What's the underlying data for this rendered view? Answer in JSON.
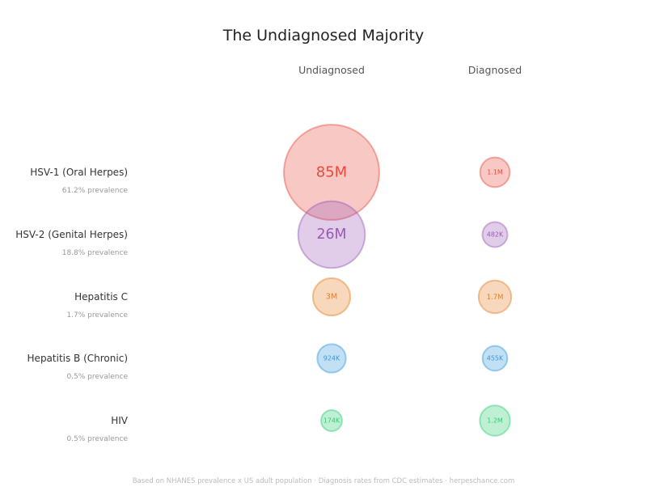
{
  "chart_data": {
    "type": "bubble",
    "title": "The Undiagnosed Majority",
    "columns": [
      "Undiagnosed",
      "Diagnosed"
    ],
    "rows": [
      {
        "name": "HSV-1 (Oral Herpes)",
        "prevalence": "61.2% prevalence",
        "color": "#e74c3c",
        "undiagnosed": 85000000,
        "undiagnosed_label": "85M",
        "diagnosed": 1100000,
        "diagnosed_label": "1.1M"
      },
      {
        "name": "HSV-2 (Genital Herpes)",
        "prevalence": "18.8% prevalence",
        "color": "#9b59b6",
        "undiagnosed": 26000000,
        "undiagnosed_label": "26M",
        "diagnosed": 482000,
        "diagnosed_label": "482K"
      },
      {
        "name": "Hepatitis C",
        "prevalence": "1.7% prevalence",
        "color": "#e67e22",
        "undiagnosed": 3000000,
        "undiagnosed_label": "3M",
        "diagnosed": 1700000,
        "diagnosed_label": "1.7M"
      },
      {
        "name": "Hepatitis B (Chronic)",
        "prevalence": "0.5% prevalence",
        "color": "#3498db",
        "undiagnosed": 924000,
        "undiagnosed_label": "924K",
        "diagnosed": 455000,
        "diagnosed_label": "455K"
      },
      {
        "name": "HIV",
        "prevalence": "0.5% prevalence",
        "color": "#2ecc71",
        "undiagnosed": 174000,
        "undiagnosed_label": "174K",
        "diagnosed": 1200000,
        "diagnosed_label": "1.2M"
      }
    ],
    "footer": "Based on NHANES prevalence x US adult population · Diagnosis rates from CDC estimates · herpeschance.com"
  }
}
